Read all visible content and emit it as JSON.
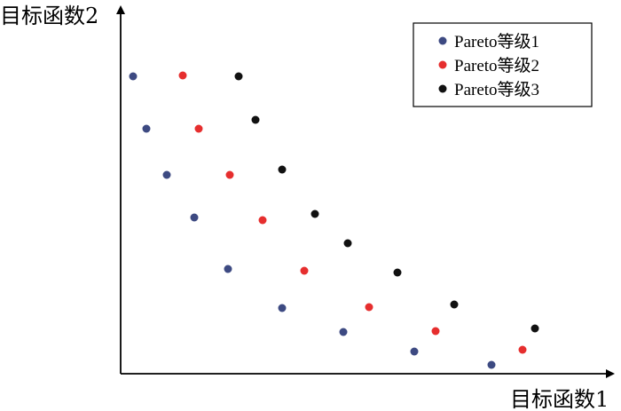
{
  "chart_data": {
    "type": "scatter",
    "xlabel": "目标函数1",
    "ylabel": "目标函数2",
    "grid": false,
    "ticks": false,
    "legend_position": "top-right",
    "xlim": [
      0,
      560
    ],
    "ylim": [
      0,
      335
    ],
    "series": [
      {
        "name": "Pareto等级1",
        "color": "#3d4a82",
        "points": [
          {
            "x": 14,
            "y": 335
          },
          {
            "x": 29,
            "y": 276
          },
          {
            "x": 52,
            "y": 224
          },
          {
            "x": 83,
            "y": 176
          },
          {
            "x": 121,
            "y": 118
          },
          {
            "x": 182,
            "y": 74
          },
          {
            "x": 251,
            "y": 47
          },
          {
            "x": 331,
            "y": 25
          },
          {
            "x": 418,
            "y": 10
          }
        ]
      },
      {
        "name": "Pareto等级2",
        "color": "#e62e2e",
        "points": [
          {
            "x": 70,
            "y": 336
          },
          {
            "x": 88,
            "y": 276
          },
          {
            "x": 123,
            "y": 224
          },
          {
            "x": 160,
            "y": 173
          },
          {
            "x": 207,
            "y": 116
          },
          {
            "x": 280,
            "y": 75
          },
          {
            "x": 355,
            "y": 48
          },
          {
            "x": 453,
            "y": 27
          }
        ]
      },
      {
        "name": "Pareto等级3",
        "color": "#111111",
        "points": [
          {
            "x": 133,
            "y": 335
          },
          {
            "x": 152,
            "y": 286
          },
          {
            "x": 182,
            "y": 230
          },
          {
            "x": 219,
            "y": 180
          },
          {
            "x": 256,
            "y": 147
          },
          {
            "x": 312,
            "y": 114
          },
          {
            "x": 376,
            "y": 78
          },
          {
            "x": 467,
            "y": 51
          }
        ]
      }
    ]
  }
}
